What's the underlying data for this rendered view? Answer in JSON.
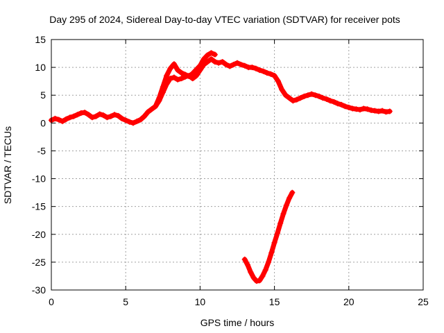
{
  "chart_data": {
    "type": "scatter",
    "title": "Day 295 of 2024, Sidereal Day-to-day VTEC variation (SDTVAR) for receiver pots",
    "xlabel": "GPS time / hours",
    "ylabel": "SDTVAR / TECUs",
    "xlim": [
      0,
      25
    ],
    "ylim": [
      -30,
      15
    ],
    "xticks": [
      0,
      5,
      10,
      15,
      20,
      25
    ],
    "xtick_labels": [
      "0",
      "5",
      "10",
      "15",
      "20",
      "25"
    ],
    "yticks": [
      -30,
      -25,
      -20,
      -15,
      -10,
      -5,
      0,
      5,
      10,
      15
    ],
    "ytick_labels": [
      "-30",
      "-25",
      "-20",
      "-15",
      "-10",
      "-5",
      "0",
      "5",
      "10",
      "15"
    ],
    "grid": true,
    "marker": "+",
    "series": [
      {
        "name": "main-trace",
        "color": "#ff0000",
        "x": [
          0.0,
          0.25,
          0.5,
          0.75,
          1.0,
          1.25,
          1.5,
          1.75,
          2.0,
          2.25,
          2.5,
          2.75,
          3.0,
          3.25,
          3.5,
          3.75,
          4.0,
          4.25,
          4.5,
          4.75,
          5.0,
          5.25,
          5.5,
          5.75,
          6.0,
          6.25,
          6.5,
          6.75,
          7.0,
          7.25,
          7.5,
          7.75,
          8.0,
          8.25,
          8.5,
          8.75,
          9.0,
          9.25,
          9.5,
          9.75,
          10.0,
          10.25,
          10.5,
          10.75,
          11.0,
          11.25,
          11.5,
          11.75,
          12.0,
          12.25,
          12.5,
          12.75,
          13.0,
          13.25,
          13.5,
          13.75,
          14.0,
          14.25,
          14.5,
          14.75,
          15.0,
          15.25,
          15.5,
          15.75,
          16.0,
          16.25,
          16.5,
          16.75,
          17.0,
          17.25,
          17.5,
          17.75,
          18.0,
          18.25,
          18.5,
          18.75,
          19.0,
          19.25,
          19.5,
          19.75,
          20.0,
          20.25,
          20.5,
          20.75,
          21.0,
          21.25,
          21.5,
          21.75,
          22.0,
          22.25,
          22.5,
          22.75
        ],
        "y": [
          0.5,
          0.8,
          0.6,
          0.3,
          0.7,
          1.0,
          1.2,
          1.5,
          1.8,
          1.9,
          1.5,
          1.0,
          1.2,
          1.6,
          1.4,
          1.0,
          1.2,
          1.5,
          1.3,
          0.8,
          0.5,
          0.2,
          0.0,
          0.3,
          0.6,
          1.2,
          2.0,
          2.5,
          3.0,
          4.0,
          5.5,
          7.0,
          8.0,
          8.2,
          7.8,
          8.0,
          8.3,
          8.5,
          8.0,
          8.5,
          9.5,
          10.5,
          11.0,
          11.5,
          11.0,
          10.8,
          11.0,
          10.5,
          10.2,
          10.5,
          10.8,
          10.5,
          10.3,
          10.0,
          10.0,
          9.8,
          9.5,
          9.3,
          9.0,
          8.8,
          8.5,
          7.5,
          6.0,
          5.0,
          4.5,
          4.0,
          4.2,
          4.5,
          4.8,
          5.0,
          5.2,
          5.0,
          4.8,
          4.5,
          4.3,
          4.0,
          3.8,
          3.5,
          3.3,
          3.0,
          2.8,
          2.6,
          2.5,
          2.4,
          2.6,
          2.5,
          2.3,
          2.2,
          2.1,
          2.2,
          2.0,
          2.1
        ]
      },
      {
        "name": "upper-branch",
        "color": "#ff0000",
        "x": [
          7.0,
          7.25,
          7.5,
          7.75,
          8.0,
          8.25,
          8.5,
          8.75,
          9.0,
          9.25,
          9.5,
          9.75,
          10.0,
          10.25,
          10.5,
          10.75,
          11.0
        ],
        "y": [
          3.0,
          4.5,
          6.5,
          8.5,
          9.8,
          10.6,
          9.5,
          9.0,
          8.7,
          8.4,
          8.9,
          9.6,
          10.3,
          11.5,
          12.2,
          12.6,
          12.3
        ]
      },
      {
        "name": "lower-dip",
        "color": "#ff0000",
        "x": [
          13.0,
          13.2,
          13.4,
          13.6,
          13.8,
          14.0,
          14.2,
          14.4,
          14.6,
          14.8,
          15.0,
          15.2,
          15.4,
          15.6,
          15.8,
          16.0,
          16.2
        ],
        "y": [
          -24.5,
          -25.5,
          -26.8,
          -27.8,
          -28.4,
          -28.3,
          -27.5,
          -26.4,
          -25.0,
          -23.3,
          -21.5,
          -19.8,
          -18.0,
          -16.3,
          -14.8,
          -13.5,
          -12.5
        ]
      }
    ]
  }
}
